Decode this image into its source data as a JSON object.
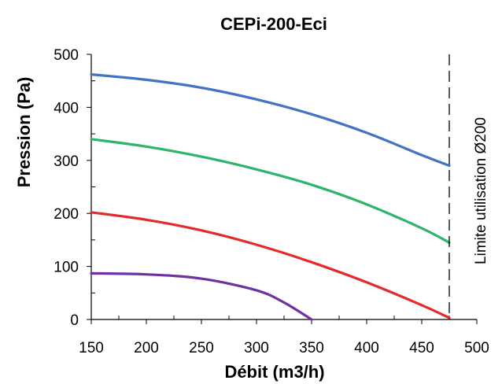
{
  "chart_data": {
    "type": "line",
    "title": "CEPi-200-Eci",
    "xlabel": "Débit (m3/h)",
    "ylabel": "Pression (Pa)",
    "xlim": [
      150,
      500
    ],
    "ylim": [
      0,
      500
    ],
    "x_ticks": [
      "150",
      "200",
      "250",
      "300",
      "350",
      "400",
      "450",
      "500"
    ],
    "y_ticks": [
      "0",
      "100",
      "200",
      "300",
      "400",
      "500"
    ],
    "grid": false,
    "series": [
      {
        "color": "#4472c4",
        "x": [
          150,
          200,
          250,
          300,
          350,
          400,
          450,
          475
        ],
        "y": [
          462,
          452,
          437,
          415,
          387,
          352,
          310,
          290
        ]
      },
      {
        "color": "#2fb46b",
        "x": [
          150,
          200,
          250,
          300,
          350,
          400,
          450,
          475
        ],
        "y": [
          340,
          326,
          307,
          283,
          254,
          217,
          172,
          145
        ]
      },
      {
        "color": "#e32b2b",
        "x": [
          150,
          200,
          250,
          300,
          350,
          400,
          450,
          475
        ],
        "y": [
          202,
          188,
          168,
          141,
          108,
          70,
          27,
          3
        ]
      },
      {
        "color": "#7030a0",
        "x": [
          150,
          200,
          250,
          300,
          325,
          350
        ],
        "y": [
          87,
          85,
          77,
          55,
          32,
          0
        ]
      }
    ],
    "limit_line": {
      "x": 475,
      "label": "Limite utilisation Ø200"
    }
  }
}
